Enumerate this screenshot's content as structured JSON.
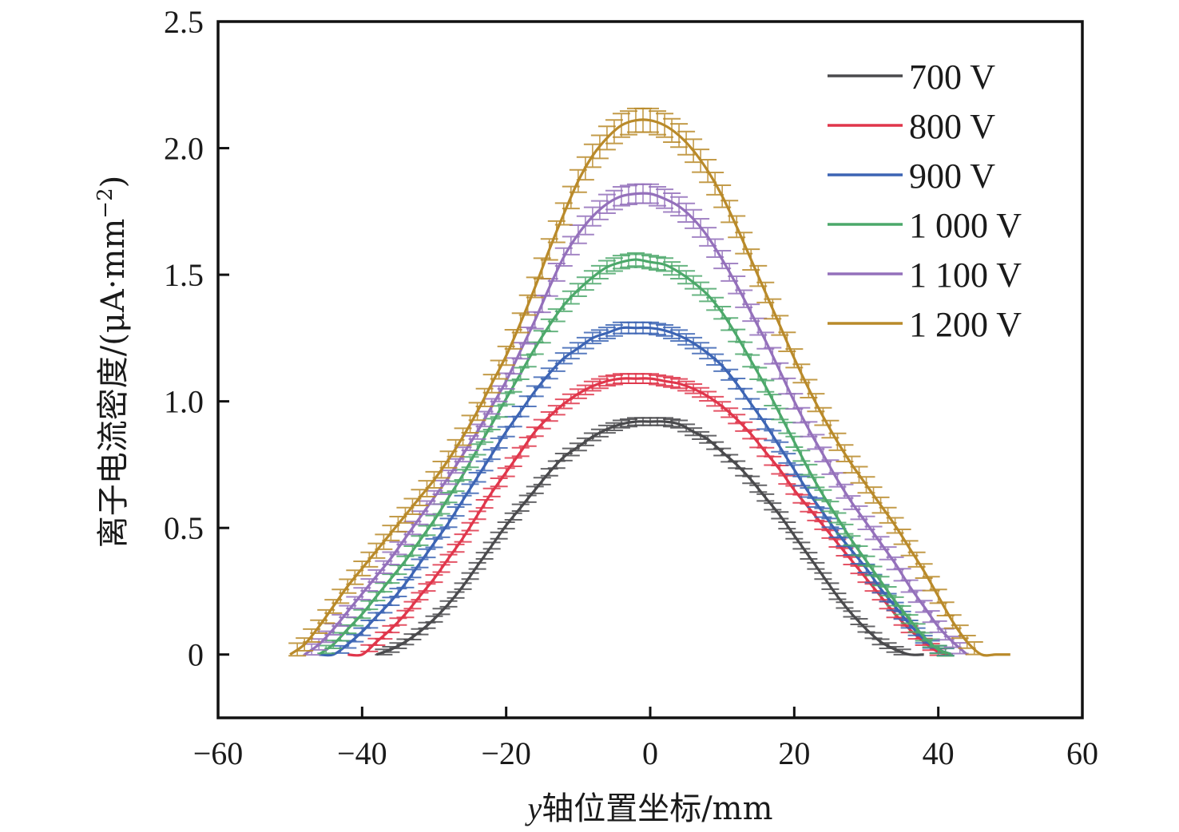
{
  "chart_data": {
    "type": "line",
    "title": "",
    "xlabel": "y轴位置坐标/mm",
    "xlabel_italic_prefix": "y",
    "xlabel_rest": "轴位置坐标/mm",
    "ylabel": "离子电流密度/(μA·mm⁻²)",
    "ylabel_main": "离子电流密度/(μA·mm",
    "ylabel_sup": "−2",
    "ylabel_close": ")",
    "xlim": [
      -60,
      60
    ],
    "ylim": [
      -0.25,
      2.5
    ],
    "xticks": [
      -60,
      -40,
      -20,
      0,
      20,
      40,
      60
    ],
    "xtick_labels": [
      "−60",
      "−40",
      "−20",
      "0",
      "20",
      "40",
      "60"
    ],
    "yticks": [
      0,
      0.5,
      1.0,
      1.5,
      2.0,
      2.5
    ],
    "ytick_labels": [
      "0",
      "0.5",
      "1.0",
      "1.5",
      "2.0",
      "2.5"
    ],
    "grid": false,
    "legend_position": "top-right",
    "error_bars": true,
    "series": [
      {
        "name": "700 V",
        "color": "#4a4a4d",
        "x": [
          -50,
          -48,
          -46,
          -44,
          -42,
          -40,
          -38,
          -36,
          -34,
          -32,
          -30,
          -28,
          -26,
          -24,
          -22,
          -20,
          -18,
          -16,
          -14,
          -12,
          -10,
          -8,
          -6,
          -4,
          -2,
          0,
          2,
          4,
          6,
          8,
          10,
          12,
          14,
          16,
          18,
          20,
          22,
          24,
          26,
          28,
          30,
          32,
          34,
          36,
          38,
          40,
          42,
          44,
          46,
          48,
          50
        ],
        "values": [
          null,
          null,
          null,
          null,
          null,
          null,
          0,
          0.02,
          0.05,
          0.09,
          0.14,
          0.2,
          0.27,
          0.35,
          0.43,
          0.51,
          0.58,
          0.65,
          0.72,
          0.78,
          0.82,
          0.86,
          0.89,
          0.91,
          0.92,
          0.92,
          0.92,
          0.91,
          0.88,
          0.85,
          0.8,
          0.75,
          0.69,
          0.62,
          0.55,
          0.47,
          0.39,
          0.31,
          0.23,
          0.16,
          0.1,
          0.05,
          0.02,
          0.0,
          0,
          null,
          null,
          null,
          null,
          null,
          null
        ],
        "err": 0.015
      },
      {
        "name": "800 V",
        "color": "#e0364b",
        "x": [
          -50,
          -48,
          -46,
          -44,
          -42,
          -40,
          -38,
          -36,
          -34,
          -32,
          -30,
          -28,
          -26,
          -24,
          -22,
          -20,
          -18,
          -16,
          -14,
          -12,
          -10,
          -8,
          -6,
          -4,
          -2,
          0,
          2,
          4,
          6,
          8,
          10,
          12,
          14,
          16,
          18,
          20,
          22,
          24,
          26,
          28,
          30,
          32,
          34,
          36,
          38,
          40,
          42,
          44,
          46,
          48,
          50
        ],
        "values": [
          null,
          null,
          null,
          null,
          0,
          0,
          0.05,
          0.1,
          0.16,
          0.23,
          0.3,
          0.38,
          0.46,
          0.55,
          0.64,
          0.72,
          0.8,
          0.88,
          0.94,
          0.99,
          1.03,
          1.06,
          1.08,
          1.09,
          1.09,
          1.09,
          1.08,
          1.07,
          1.05,
          1.02,
          0.98,
          0.93,
          0.87,
          0.8,
          0.73,
          0.65,
          0.58,
          0.51,
          0.44,
          0.37,
          0.3,
          0.23,
          0.16,
          0.1,
          0.05,
          0.01,
          0,
          null,
          null,
          null,
          null
        ],
        "err": 0.018
      },
      {
        "name": "900 V",
        "color": "#3c64b4",
        "x": [
          -50,
          -48,
          -46,
          -44,
          -42,
          -40,
          -38,
          -36,
          -34,
          -32,
          -30,
          -28,
          -26,
          -24,
          -22,
          -20,
          -18,
          -16,
          -14,
          -12,
          -10,
          -8,
          -6,
          -4,
          -2,
          0,
          2,
          4,
          6,
          8,
          10,
          12,
          14,
          16,
          18,
          20,
          22,
          24,
          26,
          28,
          30,
          32,
          34,
          36,
          38,
          40,
          42,
          44,
          46,
          48,
          50
        ],
        "values": [
          null,
          null,
          0,
          0,
          0.04,
          0.09,
          0.15,
          0.21,
          0.28,
          0.36,
          0.44,
          0.52,
          0.61,
          0.7,
          0.79,
          0.88,
          0.96,
          1.04,
          1.11,
          1.17,
          1.21,
          1.25,
          1.27,
          1.29,
          1.29,
          1.29,
          1.28,
          1.26,
          1.23,
          1.19,
          1.14,
          1.07,
          0.99,
          0.91,
          0.82,
          0.73,
          0.64,
          0.56,
          0.48,
          0.41,
          0.34,
          0.26,
          0.19,
          0.12,
          0.06,
          0.02,
          0,
          null,
          null,
          null,
          null
        ],
        "err": 0.02
      },
      {
        "name": "1 000 V",
        "color": "#4ca86a",
        "x": [
          -50,
          -48,
          -46,
          -44,
          -42,
          -40,
          -38,
          -36,
          -34,
          -32,
          -30,
          -28,
          -26,
          -24,
          -22,
          -20,
          -18,
          -16,
          -14,
          -12,
          -10,
          -8,
          -6,
          -4,
          -2,
          0,
          2,
          4,
          6,
          8,
          10,
          12,
          14,
          16,
          18,
          20,
          22,
          24,
          26,
          28,
          30,
          32,
          34,
          36,
          38,
          40,
          42,
          44,
          46,
          48,
          50
        ],
        "values": [
          null,
          null,
          0,
          0.04,
          0.1,
          0.16,
          0.23,
          0.3,
          0.37,
          0.45,
          0.53,
          0.62,
          0.71,
          0.81,
          0.91,
          1.01,
          1.11,
          1.21,
          1.3,
          1.38,
          1.44,
          1.49,
          1.53,
          1.55,
          1.56,
          1.55,
          1.54,
          1.51,
          1.47,
          1.42,
          1.35,
          1.26,
          1.16,
          1.06,
          0.95,
          0.84,
          0.73,
          0.63,
          0.54,
          0.45,
          0.37,
          0.29,
          0.21,
          0.14,
          0.07,
          0.02,
          0,
          null,
          null,
          null,
          null
        ],
        "err": 0.022
      },
      {
        "name": "1 100 V",
        "color": "#9470bb",
        "x": [
          -50,
          -48,
          -46,
          -44,
          -42,
          -40,
          -38,
          -36,
          -34,
          -32,
          -30,
          -28,
          -26,
          -24,
          -22,
          -20,
          -18,
          -16,
          -14,
          -12,
          -10,
          -8,
          -6,
          -4,
          -2,
          0,
          2,
          4,
          6,
          8,
          10,
          12,
          14,
          16,
          18,
          20,
          22,
          24,
          26,
          28,
          30,
          32,
          34,
          36,
          38,
          40,
          42,
          44,
          46,
          48,
          50
        ],
        "values": [
          null,
          0,
          0.04,
          0.1,
          0.17,
          0.24,
          0.31,
          0.38,
          0.46,
          0.54,
          0.62,
          0.7,
          0.79,
          0.88,
          0.98,
          1.08,
          1.2,
          1.32,
          1.45,
          1.57,
          1.66,
          1.73,
          1.78,
          1.81,
          1.82,
          1.82,
          1.8,
          1.77,
          1.72,
          1.65,
          1.56,
          1.46,
          1.35,
          1.24,
          1.12,
          1.0,
          0.89,
          0.79,
          0.69,
          0.6,
          0.52,
          0.44,
          0.36,
          0.27,
          0.19,
          0.11,
          0.05,
          0,
          null,
          null,
          null
        ],
        "err": 0.03
      },
      {
        "name": "1 200 V",
        "color": "#b98a2a",
        "x": [
          -50,
          -48,
          -46,
          -44,
          -42,
          -40,
          -38,
          -36,
          -34,
          -32,
          -30,
          -28,
          -26,
          -24,
          -22,
          -20,
          -18,
          -16,
          -14,
          -12,
          -10,
          -8,
          -6,
          -4,
          -2,
          0,
          2,
          4,
          6,
          8,
          10,
          12,
          14,
          16,
          18,
          20,
          22,
          24,
          26,
          28,
          30,
          32,
          34,
          36,
          38,
          40,
          42,
          44,
          46,
          48,
          50
        ],
        "values": [
          0,
          0.04,
          0.11,
          0.19,
          0.27,
          0.34,
          0.41,
          0.48,
          0.55,
          0.62,
          0.69,
          0.77,
          0.86,
          0.96,
          1.07,
          1.18,
          1.31,
          1.45,
          1.6,
          1.74,
          1.87,
          1.97,
          2.04,
          2.09,
          2.11,
          2.11,
          2.09,
          2.05,
          1.99,
          1.91,
          1.81,
          1.69,
          1.56,
          1.43,
          1.3,
          1.17,
          1.05,
          0.94,
          0.84,
          0.75,
          0.67,
          0.59,
          0.51,
          0.42,
          0.33,
          0.23,
          0.13,
          0.05,
          0,
          0,
          0
        ],
        "err": 0.035
      }
    ]
  }
}
